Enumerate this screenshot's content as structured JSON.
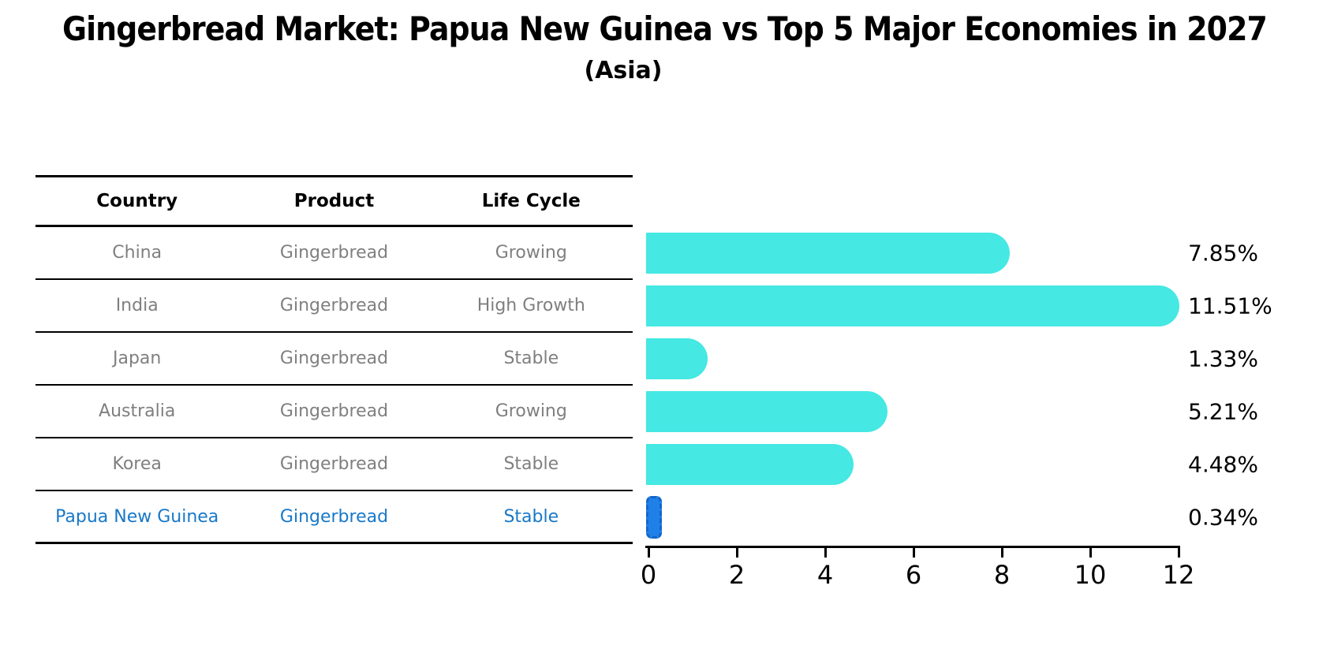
{
  "title": "Gingerbread Market: Papua New Guinea vs Top 5 Major Economies in 2027",
  "subtitle": "(Asia)",
  "table": {
    "headers": [
      "Country",
      "Product",
      "Life Cycle"
    ],
    "rows": [
      {
        "country": "China",
        "product": "Gingerbread",
        "life_cycle": "Growing",
        "highlight": false
      },
      {
        "country": "India",
        "product": "Gingerbread",
        "life_cycle": "High Growth",
        "highlight": false
      },
      {
        "country": "Japan",
        "product": "Gingerbread",
        "life_cycle": "Stable",
        "highlight": false
      },
      {
        "country": "Australia",
        "product": "Gingerbread",
        "life_cycle": "Growing",
        "highlight": false
      },
      {
        "country": "Korea",
        "product": "Gingerbread",
        "life_cycle": "Stable",
        "highlight": false
      },
      {
        "country": "Papua New Guinea",
        "product": "Gingerbread",
        "life_cycle": "Stable",
        "highlight": true
      }
    ]
  },
  "chart_data": {
    "type": "bar",
    "orientation": "horizontal",
    "title": "Gingerbread Market: Papua New Guinea vs Top 5 Major Economies in 2027",
    "subtitle": "(Asia)",
    "categories": [
      "China",
      "India",
      "Japan",
      "Australia",
      "Korea",
      "Papua New Guinea"
    ],
    "values": [
      7.85,
      11.51,
      1.33,
      5.21,
      4.48,
      0.34
    ],
    "value_labels": [
      "7.85%",
      "11.51%",
      "1.33%",
      "5.21%",
      "4.48%",
      "0.34%"
    ],
    "x_ticks": [
      0,
      2,
      4,
      6,
      8,
      10,
      12
    ],
    "x_tick_labels": [
      "0",
      "2",
      "4",
      "6",
      "8",
      "10",
      "12"
    ],
    "xlim": [
      0,
      12
    ],
    "grid": false,
    "legend": "none",
    "bar_color": "#45e8e3",
    "highlight_color": "#1f80e8",
    "highlight_index": 5
  },
  "colors": {
    "background": "#ffffff",
    "bar_cyan": "#45e8e3",
    "bar_blue": "#1f80e8",
    "highlight_text": "#1878c8",
    "table_text": "#7f7f7f",
    "axis": "#000000"
  }
}
